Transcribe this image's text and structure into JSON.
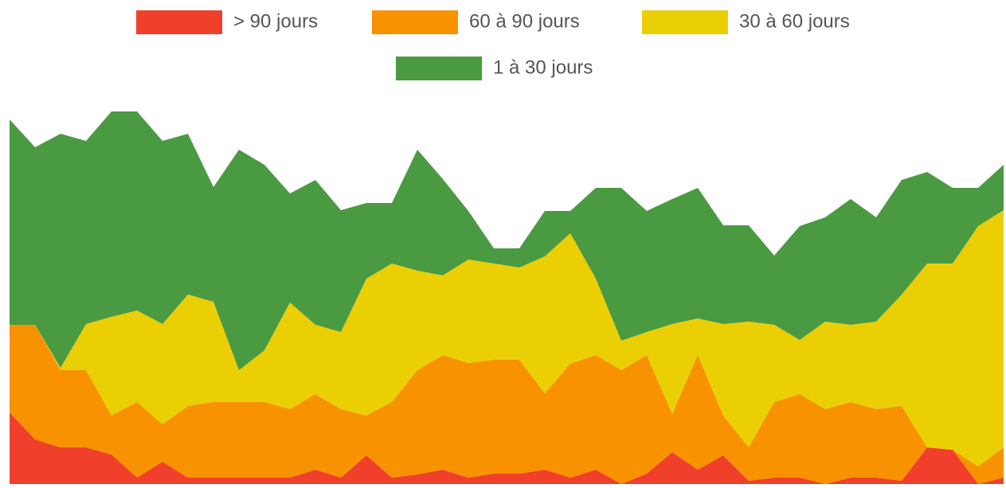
{
  "chart_data": {
    "type": "stacked_area",
    "ylim": [
      0,
      100
    ],
    "series": [
      {
        "name": "> 90 jours",
        "color": "#f0402c",
        "values": [
          18,
          11.2,
          9.2,
          9.2,
          7.4,
          1.6,
          5.6,
          1.6,
          1.6,
          1.6,
          1.6,
          1.6,
          3.6,
          1.6,
          7.2,
          1.6,
          2.4,
          3.6,
          1.6,
          2.6,
          2.6,
          3.6,
          1.6,
          3.6,
          0,
          2.6,
          8,
          3.6,
          7.2,
          0.8,
          1.6,
          1.6,
          0,
          1.6,
          1.6,
          0.8,
          9.2,
          8.6,
          0,
          1.6
        ]
      },
      {
        "name": "60 à 90 jours",
        "color": "#f89200",
        "values": [
          22,
          28.8,
          19.4,
          19.4,
          9.8,
          19,
          9.4,
          18,
          19,
          19,
          19,
          17.2,
          19,
          17.2,
          10,
          19,
          26.2,
          28.8,
          28.8,
          28.6,
          28.6,
          19.2,
          28.6,
          28.8,
          28.6,
          29.8,
          9.6,
          28.8,
          10,
          8.4,
          19,
          21,
          18.8,
          19,
          17.2,
          18.8,
          0,
          0,
          4.4,
          7.6
        ]
      },
      {
        "name": "30 à 60 jours",
        "color": "#ebcf05",
        "values": [
          0,
          0,
          0.6,
          11.6,
          24.8,
          23,
          25.2,
          28,
          25.2,
          8,
          13,
          26.8,
          17.4,
          19.4,
          34.4,
          34.8,
          25,
          20,
          26,
          24.2,
          23.2,
          34.4,
          32.8,
          19.2,
          7.4,
          5.8,
          22.6,
          9.2,
          23,
          31.6,
          19.4,
          13.6,
          22,
          19.4,
          22,
          28,
          46.2,
          46.8,
          60.4,
          59.6
        ]
      },
      {
        "name": "1 à 30 jours",
        "color": "#4a9a41",
        "values": [
          51.6,
          44.6,
          58.8,
          46,
          51.6,
          50,
          46,
          40.4,
          28.8,
          55.4,
          46.6,
          27.4,
          36.4,
          30.6,
          19,
          15.2,
          30.4,
          24.2,
          12.2,
          3.8,
          4.8,
          11.4,
          5.6,
          22.8,
          38.4,
          30.4,
          31.4,
          32.8,
          24.8,
          24.2,
          17.4,
          28.6,
          26.2,
          31.6,
          26.2,
          28.8,
          23,
          19,
          9.6,
          11.4
        ]
      }
    ]
  }
}
